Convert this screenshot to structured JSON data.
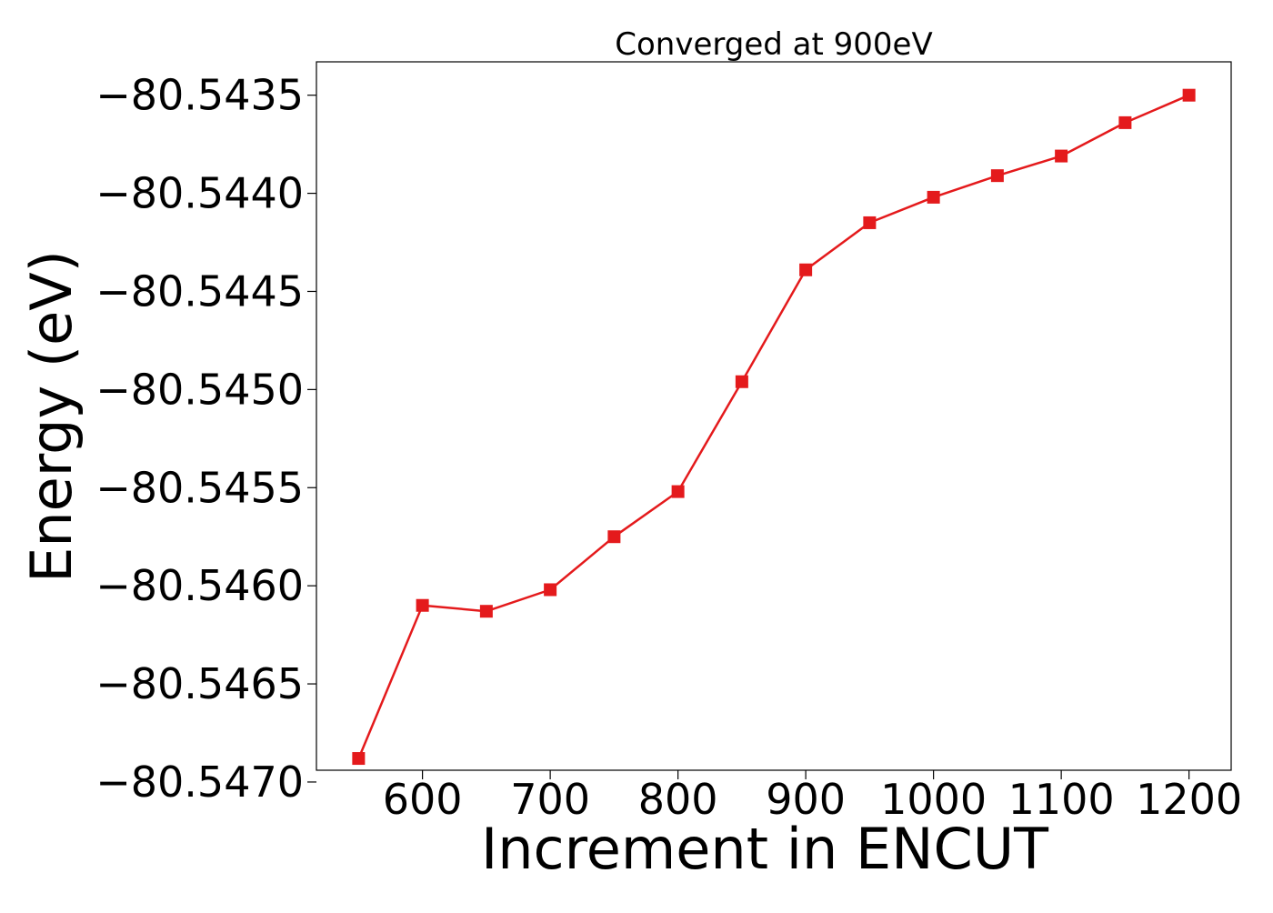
{
  "chart_data": {
    "type": "line",
    "title": "Converged at 900eV",
    "xlabel": "Increment in ENCUT",
    "ylabel": "Energy (eV)",
    "x": [
      550,
      600,
      650,
      700,
      750,
      800,
      850,
      900,
      950,
      1000,
      1050,
      1100,
      1150,
      1200
    ],
    "series": [
      {
        "color": "#e41a1c",
        "marker": "square",
        "values": [
          -80.54688,
          -80.5461,
          -80.54613,
          -80.54602,
          -80.54575,
          -80.54552,
          -80.54496,
          -80.54439,
          -80.54415,
          -80.54402,
          -80.54391,
          -80.54381,
          -80.54364,
          -80.5435
        ]
      }
    ],
    "xticks": [
      600,
      700,
      800,
      900,
      1000,
      1100,
      1200
    ],
    "xtick_labels": [
      "600",
      "700",
      "800",
      "900",
      "1000",
      "1100",
      "1200"
    ],
    "yticks": [
      -80.547,
      -80.5465,
      -80.546,
      -80.5455,
      -80.545,
      -80.5445,
      -80.544,
      -80.5435
    ],
    "ytick_labels": [
      "−80.5470",
      "−80.5465",
      "−80.5460",
      "−80.5455",
      "−80.5450",
      "−80.5445",
      "−80.5440",
      "−80.5435"
    ],
    "xlim": [
      517,
      1233
    ],
    "ylim": [
      -80.54694,
      -80.54333
    ],
    "grid": false,
    "legend": false
  }
}
